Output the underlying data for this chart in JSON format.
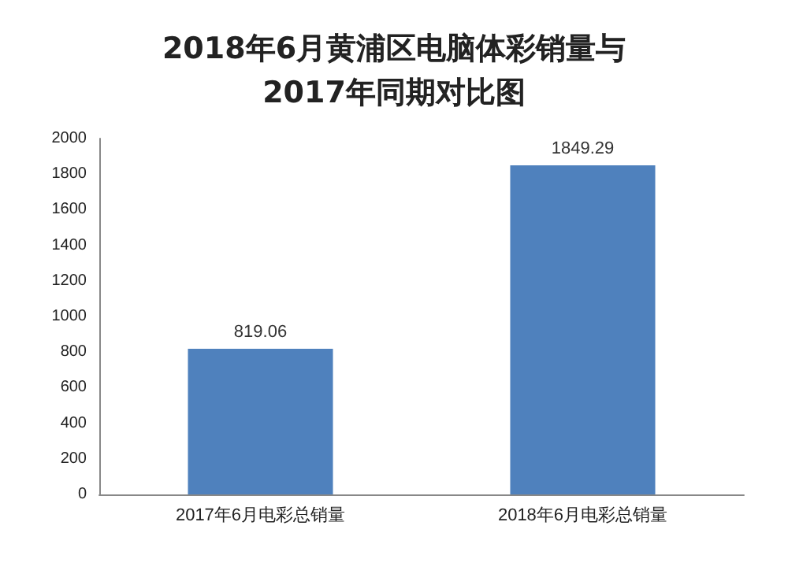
{
  "chart_data": {
    "type": "bar",
    "title": "2018年6月黄浦区电脑体彩销量与\n2017年同期对比图",
    "categories": [
      "2017年6月电彩总销量",
      "2018年6月电彩总销量"
    ],
    "values": [
      819.06,
      1849.29
    ],
    "color": "#4f81bd",
    "data_labels": true,
    "ylim": [
      0,
      2000
    ],
    "yticks": [
      0,
      200,
      400,
      600,
      800,
      1000,
      1200,
      1400,
      1600,
      1800,
      2000
    ],
    "grid": false
  }
}
